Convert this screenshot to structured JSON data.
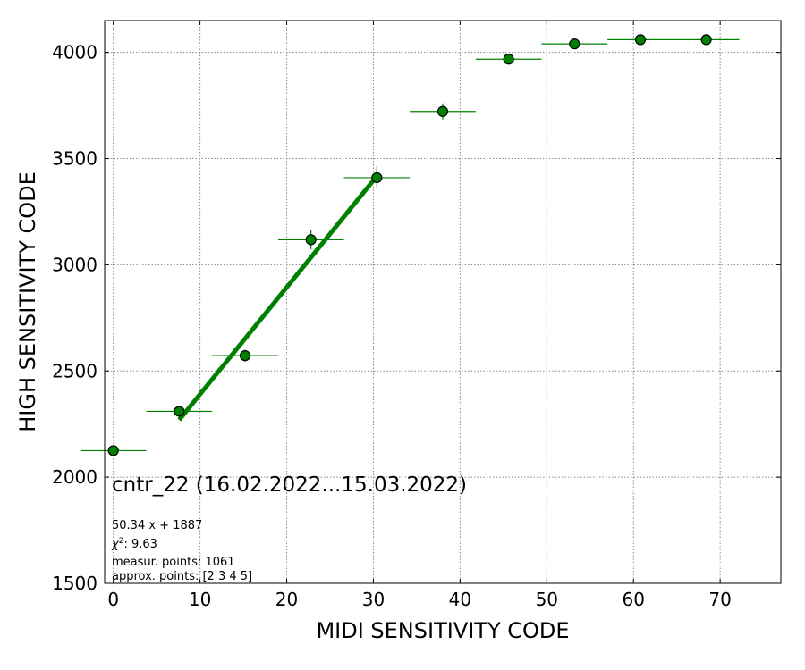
{
  "chart_data": {
    "type": "scatter",
    "title": "cntr_22 (16.02.2022...15.03.2022)",
    "xlabel": "MIDI SENSITIVITY CODE",
    "ylabel": "HIGH SENSITIVITY CODE",
    "xlim": [
      -1,
      77
    ],
    "ylim": [
      1500,
      4150
    ],
    "xticks": [
      0,
      10,
      20,
      30,
      40,
      50,
      60,
      70
    ],
    "yticks": [
      1500,
      2000,
      2500,
      3000,
      3500,
      4000
    ],
    "grid": true,
    "point_color": "#008000",
    "point_edge_color": "#000000",
    "fit_color": "#008000",
    "points": [
      {
        "x": 0.0,
        "y": 2125,
        "xerr": 3.8,
        "yerr": 0
      },
      {
        "x": 7.6,
        "y": 2310,
        "xerr": 3.8,
        "yerr": 18
      },
      {
        "x": 15.2,
        "y": 2572,
        "xerr": 3.8,
        "yerr": 28
      },
      {
        "x": 22.8,
        "y": 3118,
        "xerr": 3.8,
        "yerr": 45
      },
      {
        "x": 30.4,
        "y": 3410,
        "xerr": 3.8,
        "yerr": 52
      },
      {
        "x": 38.0,
        "y": 3722,
        "xerr": 3.8,
        "yerr": 38
      },
      {
        "x": 45.6,
        "y": 3968,
        "xerr": 3.8,
        "yerr": 10
      },
      {
        "x": 53.2,
        "y": 4040,
        "xerr": 3.8,
        "yerr": 5
      },
      {
        "x": 60.8,
        "y": 4060,
        "xerr": 3.8,
        "yerr": 5
      },
      {
        "x": 68.4,
        "y": 4060,
        "xerr": 3.8,
        "yerr": 5
      }
    ],
    "fit": {
      "slope": 50.34,
      "intercept": 1887,
      "x_range": [
        7.6,
        30.4
      ]
    },
    "annotations": {
      "equation": "50.34 x + 1887",
      "chi2_value": ": 9.63",
      "measur_points": "measur. points: 1061",
      "approx_points": "approx. points: [2 3 4 5]"
    }
  }
}
